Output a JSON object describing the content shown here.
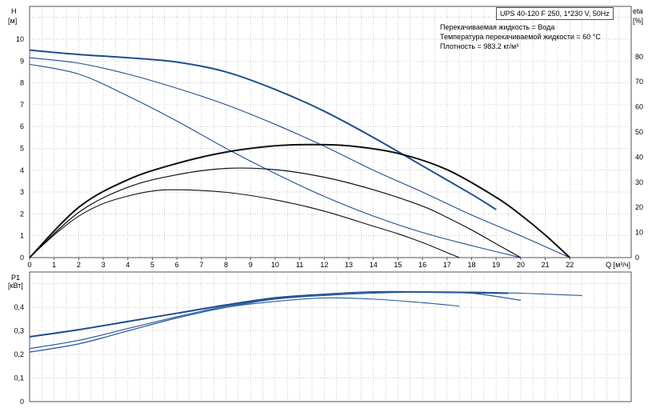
{
  "chart_data": [
    {
      "type": "line",
      "title": "UPS 40-120 F 250, 1*230 V, 50Hz",
      "annotations": [
        "Перекачиваемая жидкость = Вода",
        "Температура перекачиваемой жидкости = 60 °C",
        "Плотность = 983.2 кг/м³"
      ],
      "ylabel": "H",
      "yunit": "[м]",
      "y2label": "eta",
      "y2unit": "[%]",
      "xlabel": "Q [м³/ч]",
      "xlim": [
        0,
        24.5
      ],
      "ylim": [
        0,
        11.5
      ],
      "y2lim": [
        0,
        100
      ],
      "xticks": [
        "0",
        "1",
        "2",
        "3",
        "4",
        "5",
        "6",
        "7",
        "8",
        "9",
        "10",
        "11",
        "12",
        "13",
        "14",
        "15",
        "16",
        "17",
        "18",
        "19",
        "20",
        "21",
        "22"
      ],
      "yticks": [
        "0",
        "1",
        "2",
        "3",
        "4",
        "5",
        "6",
        "7",
        "8",
        "9",
        "10"
      ],
      "y2ticks": [
        "0",
        "10",
        "20",
        "30",
        "40",
        "50",
        "60",
        "70",
        "80"
      ],
      "grid": true,
      "head_curves": [
        {
          "x": [
            0,
            2,
            4,
            6,
            8,
            10,
            12,
            14,
            16,
            18,
            19
          ],
          "y": [
            9.5,
            9.3,
            9.15,
            8.95,
            8.5,
            7.7,
            6.7,
            5.5,
            4.2,
            2.9,
            2.2
          ]
        },
        {
          "x": [
            0,
            2,
            4,
            6,
            8,
            10,
            12,
            14,
            16,
            18,
            20,
            21,
            22
          ],
          "y": [
            9.15,
            8.9,
            8.4,
            7.75,
            7.0,
            6.1,
            5.1,
            4.0,
            3.0,
            1.95,
            1.0,
            0.5,
            0.0
          ]
        },
        {
          "x": [
            0,
            2,
            4,
            6,
            8,
            10,
            12,
            14,
            16,
            18,
            20
          ],
          "y": [
            8.85,
            8.4,
            7.4,
            6.25,
            5.0,
            3.85,
            2.8,
            1.9,
            1.15,
            0.55,
            0.0
          ]
        }
      ],
      "efficiency_curves": [
        {
          "x": [
            0,
            2,
            4,
            6,
            8,
            10,
            11.5,
            13,
            15,
            17,
            19,
            20,
            21,
            22
          ],
          "y": [
            0,
            20,
            31,
            37.5,
            42,
            44.5,
            45,
            44.5,
            41.5,
            35,
            24,
            17,
            9,
            0
          ]
        },
        {
          "x": [
            0,
            2,
            4,
            6,
            8,
            10,
            12,
            14,
            16,
            17,
            18,
            19,
            20
          ],
          "y": [
            0,
            18,
            28,
            33,
            35.5,
            35,
            32,
            27,
            20.5,
            16,
            11,
            5.5,
            0
          ]
        },
        {
          "x": [
            0,
            1,
            2,
            3,
            4,
            5,
            6,
            8,
            10,
            12,
            14,
            15,
            16,
            17,
            17.5
          ],
          "y": [
            0,
            9,
            16.5,
            21.5,
            24.5,
            26.5,
            27,
            26,
            23,
            18.5,
            12.5,
            9.5,
            6,
            2,
            0
          ]
        }
      ]
    },
    {
      "type": "line",
      "ylabel": "P1",
      "yunit": "[кВт]",
      "xlim": [
        0,
        24.5
      ],
      "ylim": [
        0,
        0.55
      ],
      "yticks": [
        "0",
        "0,1",
        "0,2",
        "0,3",
        "0,4"
      ],
      "grid": true,
      "series": [
        {
          "x": [
            0,
            2,
            4,
            6,
            8,
            10,
            12,
            14,
            16,
            19.5
          ],
          "values": [
            0.275,
            0.305,
            0.34,
            0.375,
            0.41,
            0.44,
            0.455,
            0.465,
            0.465,
            0.46
          ]
        },
        {
          "x": [
            0,
            2,
            4,
            6,
            8,
            10,
            12,
            14,
            16,
            18,
            20
          ],
          "values": [
            0.225,
            0.26,
            0.31,
            0.36,
            0.405,
            0.435,
            0.455,
            0.465,
            0.465,
            0.46,
            0.43
          ]
        },
        {
          "x": [
            0,
            2,
            4,
            6,
            8,
            10,
            12,
            14,
            16,
            18,
            20,
            22.5
          ],
          "values": [
            0.21,
            0.245,
            0.3,
            0.355,
            0.4,
            0.435,
            0.45,
            0.46,
            0.465,
            0.465,
            0.46,
            0.45
          ]
        },
        {
          "x": [
            0,
            2,
            4,
            6,
            8,
            10,
            12,
            14,
            16,
            17.5
          ],
          "values": [
            0.21,
            0.245,
            0.3,
            0.355,
            0.4,
            0.425,
            0.44,
            0.435,
            0.42,
            0.405
          ]
        }
      ]
    }
  ]
}
